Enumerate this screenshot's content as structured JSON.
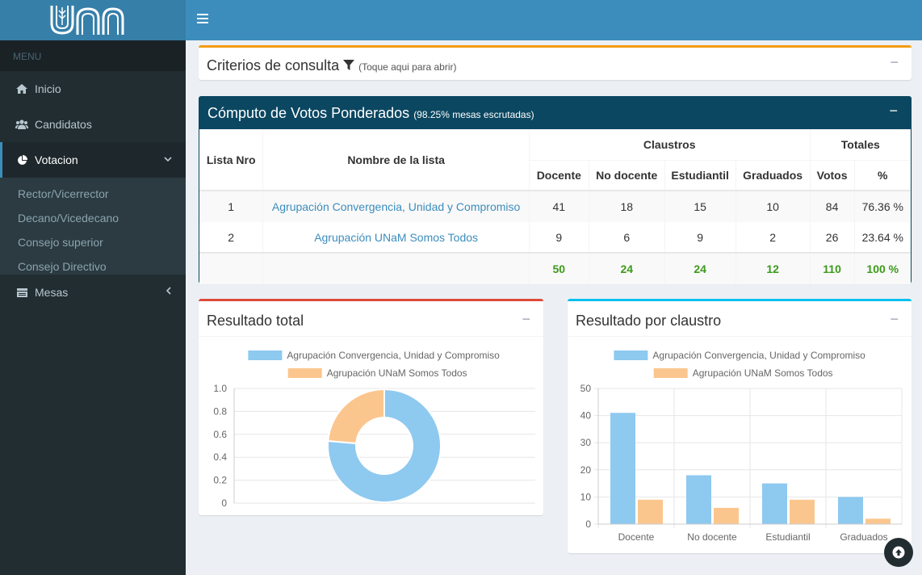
{
  "app": {
    "logo_text": "UNaM"
  },
  "sidebar": {
    "header": "MENU",
    "items": [
      {
        "label": "Inicio",
        "icon": "home-icon"
      },
      {
        "label": "Candidatos",
        "icon": "users-icon"
      },
      {
        "label": "Votacion",
        "icon": "pie-chart-icon",
        "active": true
      },
      {
        "label": "Mesas",
        "icon": "table-icon"
      }
    ],
    "submenu": [
      "Rector/Vicerrector",
      "Decano/Vicedecano",
      "Consejo superior",
      "Consejo Directivo"
    ]
  },
  "criterios": {
    "title": "Criterios de consulta",
    "hint": "(Toque aqui para abrir)",
    "icon": "filter-icon"
  },
  "computo": {
    "title": "Cómputo de Votos Ponderados",
    "subtitle": "(98.25% mesas escrutadas)",
    "headers": {
      "lista_nro": "Lista Nro",
      "nombre": "Nombre de la lista",
      "claustros": "Claustros",
      "totales": "Totales",
      "docente": "Docente",
      "no_docente": "No docente",
      "estudiantil": "Estudiantil",
      "graduados": "Graduados",
      "votos": "Votos",
      "pct": "%"
    },
    "rows": [
      {
        "nro": "1",
        "nombre": "Agrupación Convergencia, Unidad y Compromiso",
        "docente": "41",
        "no_docente": "18",
        "estudiantil": "15",
        "graduados": "10",
        "votos": "84",
        "pct": "76.36 %"
      },
      {
        "nro": "2",
        "nombre": "Agrupación UNaM Somos Todos",
        "docente": "9",
        "no_docente": "6",
        "estudiantil": "9",
        "graduados": "2",
        "votos": "26",
        "pct": "23.64 %"
      }
    ],
    "totals": {
      "docente": "50",
      "no_docente": "24",
      "estudiantil": "24",
      "graduados": "12",
      "votos": "110",
      "pct": "100 %"
    }
  },
  "resultado_total": {
    "title": "Resultado total"
  },
  "resultado_claustro": {
    "title": "Resultado por claustro"
  },
  "colors": {
    "series1": "#8ec9f0",
    "series2": "#fbc68e",
    "accent": "#3c8dbc",
    "sidebar": "#222d32"
  },
  "chart_data": [
    {
      "type": "pie",
      "donut": true,
      "legend": [
        "Agrupación Convergencia, Unidad y Compromiso",
        "Agrupación UNaM Somos Todos"
      ],
      "values": [
        84,
        26
      ],
      "yticks": [
        "1.0",
        "0.8",
        "0.6",
        "0.4",
        "0.2",
        "0"
      ],
      "ylim": [
        0,
        1
      ],
      "grid": true,
      "legend_position": "top"
    },
    {
      "type": "bar",
      "categories": [
        "Docente",
        "No docente",
        "Estudiantil",
        "Graduados"
      ],
      "series": [
        {
          "name": "Agrupación Convergencia, Unidad y Compromiso",
          "values": [
            41,
            18,
            15,
            10
          ]
        },
        {
          "name": "Agrupación UNaM Somos Todos",
          "values": [
            9,
            6,
            9,
            2
          ]
        }
      ],
      "yticks": [
        "50",
        "40",
        "30",
        "20",
        "10",
        "0"
      ],
      "ylim": [
        0,
        50
      ],
      "grid": true,
      "legend_position": "top"
    }
  ]
}
